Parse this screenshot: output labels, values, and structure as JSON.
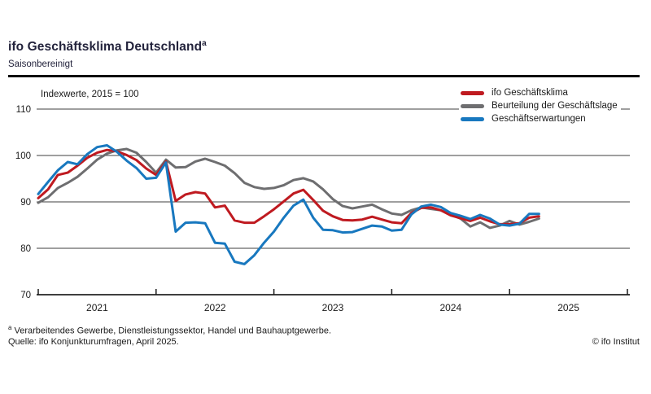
{
  "header": {
    "title": "ifo Geschäftsklima Deutschland",
    "title_superscript": "a",
    "subtitle": "Saisonbereinigt"
  },
  "chart_data": {
    "type": "line",
    "title": "ifo Geschäftsklima Deutschland (saisonbereinigt)",
    "axis_note": "Indexwerte, 2015 = 100",
    "ylim": [
      70,
      110
    ],
    "yticks": [
      110,
      100,
      90,
      80,
      70
    ],
    "grid": "horizontal",
    "legend_position": "top-right",
    "x_start_month": "2021-01",
    "x_end_month": "2025-04",
    "x_tick_years": [
      "2021",
      "2022",
      "2023",
      "2024",
      "2025"
    ],
    "series": [
      {
        "name": "ifo Geschäftsklima",
        "color": "#bf1a20",
        "values": [
          90.8,
          92.7,
          95.8,
          96.3,
          97.8,
          99.5,
          100.6,
          101.2,
          100.9,
          100.1,
          99.0,
          97.2,
          95.8,
          98.7,
          90.2,
          91.6,
          92.1,
          91.8,
          88.8,
          89.2,
          86.0,
          85.5,
          85.5,
          86.9,
          88.4,
          90.1,
          91.8,
          92.6,
          90.4,
          88.1,
          86.9,
          86.1,
          86.0,
          86.2,
          86.8,
          86.2,
          85.6,
          85.4,
          87.6,
          88.7,
          88.8,
          88.2,
          87.1,
          86.5,
          85.9,
          86.6,
          85.8,
          85.2,
          85.2,
          85.4,
          86.6,
          86.9
        ]
      },
      {
        "name": "Beurteilung der Geschäftslage",
        "color": "#6e6e70",
        "values": [
          89.8,
          91.0,
          93.0,
          94.1,
          95.4,
          97.2,
          99.1,
          100.4,
          101.1,
          101.4,
          100.6,
          98.6,
          96.3,
          99.1,
          97.4,
          97.5,
          98.7,
          99.3,
          98.6,
          97.8,
          96.2,
          94.1,
          93.2,
          92.8,
          93.0,
          93.6,
          94.7,
          95.1,
          94.4,
          92.7,
          90.6,
          89.1,
          88.6,
          89.0,
          89.4,
          88.4,
          87.5,
          87.2,
          88.2,
          88.8,
          88.5,
          88.2,
          87.3,
          86.4,
          84.7,
          85.6,
          84.4,
          84.9,
          85.9,
          85.1,
          85.7,
          86.4
        ]
      },
      {
        "name": "Geschäftserwartungen",
        "color": "#1878bf",
        "values": [
          91.7,
          94.3,
          96.8,
          98.6,
          98.1,
          100.3,
          101.8,
          102.2,
          100.8,
          98.9,
          97.3,
          95.0,
          95.2,
          98.5,
          83.6,
          85.5,
          85.6,
          85.4,
          81.2,
          81.0,
          77.1,
          76.6,
          78.5,
          81.2,
          83.6,
          86.6,
          89.2,
          90.5,
          86.6,
          84.0,
          83.9,
          83.4,
          83.5,
          84.2,
          84.9,
          84.7,
          83.8,
          84.0,
          87.3,
          89.0,
          89.4,
          88.9,
          87.6,
          87.0,
          86.3,
          87.2,
          86.4,
          85.1,
          84.9,
          85.3,
          87.4,
          87.4
        ]
      }
    ]
  },
  "footer": {
    "footnote_superscript": "a",
    "footnote": " Verarbeitendes Gewerbe, Dienstleistungssektor, Handel und Bauhauptgewerbe.",
    "source": "Quelle: ifo Konjunkturumfragen, April 2025.",
    "copyright": "© ifo Institut"
  }
}
